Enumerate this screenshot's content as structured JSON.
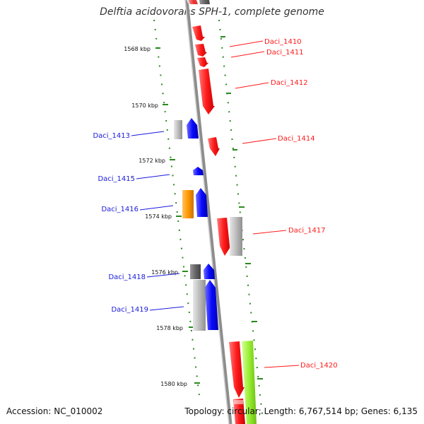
{
  "title": "Delftia acidovorans SPH-1, complete genome",
  "accession": "Accession: NC_010002",
  "topology": "Topology: circular; Length: 6,767,514 bp; Genes: 6,135",
  "colors": {
    "red": "#ff1a1a",
    "blue": "#0a0aff",
    "orange": "#ff9900",
    "grey": "#bbbbbb",
    "darkgrey": "#666666",
    "lime": "#99ee33",
    "tick": "#2a8a1e",
    "axis": "#8c8c8c"
  },
  "ticks": [
    "1568 kbp",
    "1570 kbp",
    "1572 kbp",
    "1574 kbp",
    "1576 kbp",
    "1578 kbp",
    "1580 kbp"
  ],
  "genes_right": [
    "Daci_1410",
    "Daci_1411",
    "Daci_1412",
    "Daci_1414",
    "Daci_1417",
    "Daci_1420"
  ],
  "genes_left": [
    "Daci_1413",
    "Daci_1415",
    "Daci_1416",
    "Daci_1418",
    "Daci_1419"
  ]
}
